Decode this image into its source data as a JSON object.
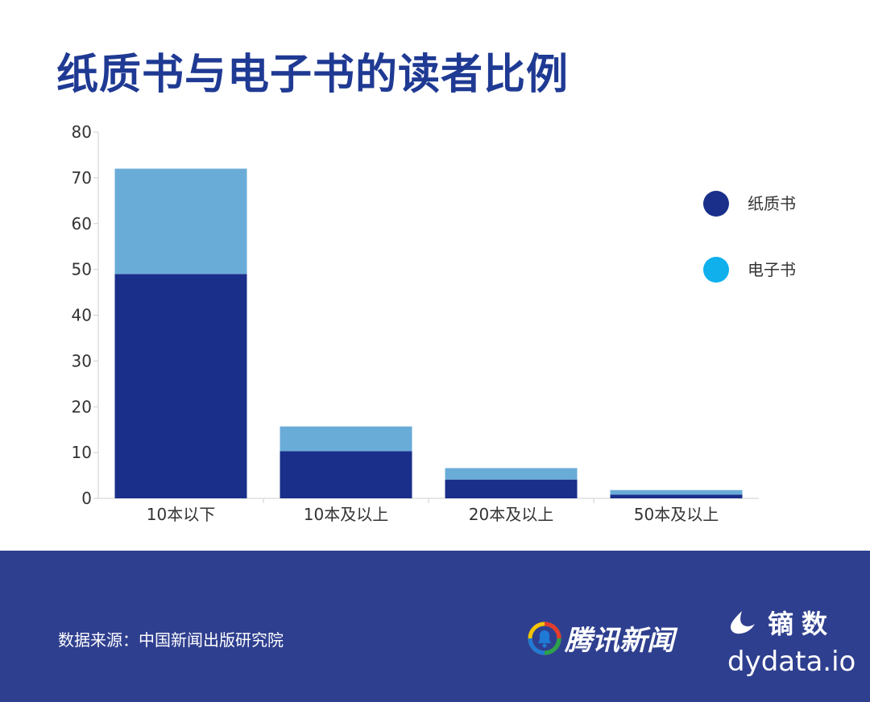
{
  "title": "纸质书与电子书的读者比例",
  "chart_data": {
    "type": "bar",
    "stacked": true,
    "categories": [
      "10本以下",
      "10本及以上",
      "20本及以上",
      "50本及以上"
    ],
    "series": [
      {
        "name": "纸质书",
        "values": [
          49,
          10.3,
          4.1,
          0.8
        ],
        "color": "#1a2f8a",
        "legend_color": "#1a2f8a"
      },
      {
        "name": "电子书",
        "values": [
          23,
          5.4,
          2.5,
          1.0
        ],
        "color": "#6aacd8",
        "legend_color": "#0fb0ec"
      }
    ],
    "ylim": [
      0,
      80
    ],
    "yticks": [
      "0",
      "10",
      "20",
      "30",
      "40",
      "50",
      "60",
      "70",
      "80"
    ],
    "xlabel": "",
    "ylabel": "",
    "grid": false,
    "legend_position": "right"
  },
  "footer": {
    "source": "数据来源：中国新闻出版研究院",
    "logo_tencent": "腾讯新闻",
    "logo_dy_cn": "镝数",
    "logo_dy_url": "dydata.io"
  }
}
